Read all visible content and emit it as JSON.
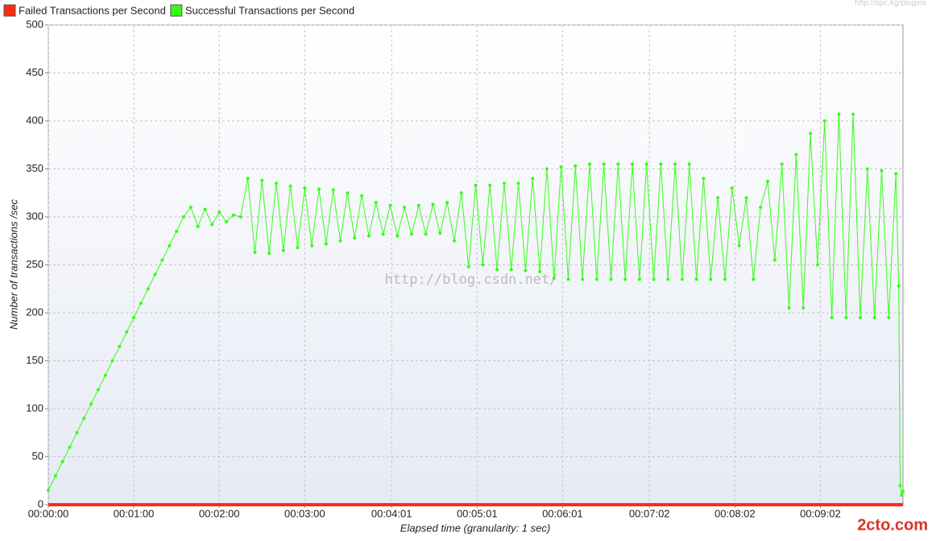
{
  "chart_data": {
    "type": "line",
    "xlabel": "Elapsed time (granularity: 1 sec)",
    "ylabel": "Number of transactions /sec",
    "annotations": [
      "http://blog.csdn.net/",
      "http://apc.kg/plugins",
      "2cto.com"
    ],
    "grid": true,
    "legend": "top-left",
    "xlim": [
      0,
      600
    ],
    "ylim": [
      0,
      500
    ],
    "yticks": [
      0,
      50,
      100,
      150,
      200,
      250,
      300,
      350,
      400,
      450,
      500
    ],
    "xticks": [
      {
        "value": 0,
        "label": "00:00:00"
      },
      {
        "value": 60,
        "label": "00:01:00"
      },
      {
        "value": 120,
        "label": "00:02:00"
      },
      {
        "value": 180,
        "label": "00:03:00"
      },
      {
        "value": 241,
        "label": "00:04:01"
      },
      {
        "value": 301,
        "label": "00:05:01"
      },
      {
        "value": 361,
        "label": "00:06:01"
      },
      {
        "value": 422,
        "label": "00:07:02"
      },
      {
        "value": 482,
        "label": "00:08:02"
      },
      {
        "value": 542,
        "label": "00:09:02"
      }
    ],
    "x": [
      0,
      5,
      10,
      15,
      20,
      25,
      30,
      35,
      40,
      45,
      50,
      55,
      60,
      65,
      70,
      75,
      80,
      85,
      90,
      95,
      100,
      105,
      110,
      115,
      120,
      125,
      130,
      135,
      140,
      145,
      150,
      155,
      160,
      165,
      170,
      175,
      180,
      185,
      190,
      195,
      200,
      205,
      210,
      215,
      220,
      225,
      230,
      235,
      240,
      245,
      250,
      255,
      260,
      265,
      270,
      275,
      280,
      285,
      290,
      295,
      300,
      305,
      310,
      315,
      320,
      325,
      330,
      335,
      340,
      345,
      350,
      355,
      360,
      365,
      370,
      375,
      380,
      385,
      390,
      395,
      400,
      405,
      410,
      415,
      420,
      425,
      430,
      435,
      440,
      445,
      450,
      455,
      460,
      465,
      470,
      475,
      480,
      485,
      490,
      495,
      500,
      505,
      510,
      515,
      520,
      525,
      530,
      535,
      540,
      545,
      550,
      555,
      560,
      565,
      570,
      575,
      580,
      585,
      590,
      595,
      597,
      598,
      599,
      600
    ],
    "series": [
      {
        "name": "Failed Transactions per Second",
        "color": "#ff2a14",
        "values": [
          0,
          0,
          0,
          0,
          0,
          0,
          0,
          0,
          0,
          0,
          0,
          0,
          0,
          0,
          0,
          0,
          0,
          0,
          0,
          0,
          0,
          0,
          0,
          0,
          0,
          0,
          0,
          0,
          0,
          0,
          0,
          0,
          0,
          0,
          0,
          0,
          0,
          0,
          0,
          0,
          0,
          0,
          0,
          0,
          0,
          0,
          0,
          0,
          0,
          0,
          0,
          0,
          0,
          0,
          0,
          0,
          0,
          0,
          0,
          0,
          0,
          0,
          0,
          0,
          0,
          0,
          0,
          0,
          0,
          0,
          0,
          0,
          0,
          0,
          0,
          0,
          0,
          0,
          0,
          0,
          0,
          0,
          0,
          0,
          0,
          0,
          0,
          0,
          0,
          0,
          0,
          0,
          0,
          0,
          0,
          0,
          0,
          0,
          0,
          0,
          0,
          0,
          0,
          0,
          0,
          0,
          0,
          0,
          0,
          0,
          0,
          0,
          0,
          0,
          0,
          0,
          0,
          0,
          0,
          0,
          0,
          0,
          0,
          0
        ]
      },
      {
        "name": "Successful Transactions per Second",
        "color": "#33ff14",
        "values": [
          15,
          30,
          45,
          60,
          75,
          90,
          105,
          120,
          135,
          150,
          165,
          180,
          195,
          210,
          225,
          240,
          255,
          270,
          285,
          300,
          310,
          290,
          308,
          292,
          305,
          295,
          302,
          300,
          340,
          263,
          338,
          262,
          335,
          265,
          332,
          268,
          330,
          270,
          329,
          272,
          328,
          275,
          325,
          278,
          322,
          280,
          315,
          282,
          312,
          280,
          310,
          282,
          312,
          282,
          313,
          283,
          315,
          275,
          325,
          248,
          333,
          250,
          333,
          245,
          335,
          245,
          335,
          244,
          340,
          243,
          350,
          236,
          352,
          235,
          353,
          235,
          355,
          235,
          355,
          235,
          355,
          235,
          355,
          235,
          355,
          235,
          355,
          235,
          355,
          235,
          355,
          235,
          340,
          235,
          320,
          235,
          330,
          270,
          320,
          235,
          310,
          337,
          255,
          355,
          205,
          365,
          205,
          387,
          250,
          400,
          195,
          407,
          195,
          407,
          195,
          350,
          195,
          348,
          195,
          345,
          228,
          20,
          10,
          14
        ]
      }
    ]
  }
}
